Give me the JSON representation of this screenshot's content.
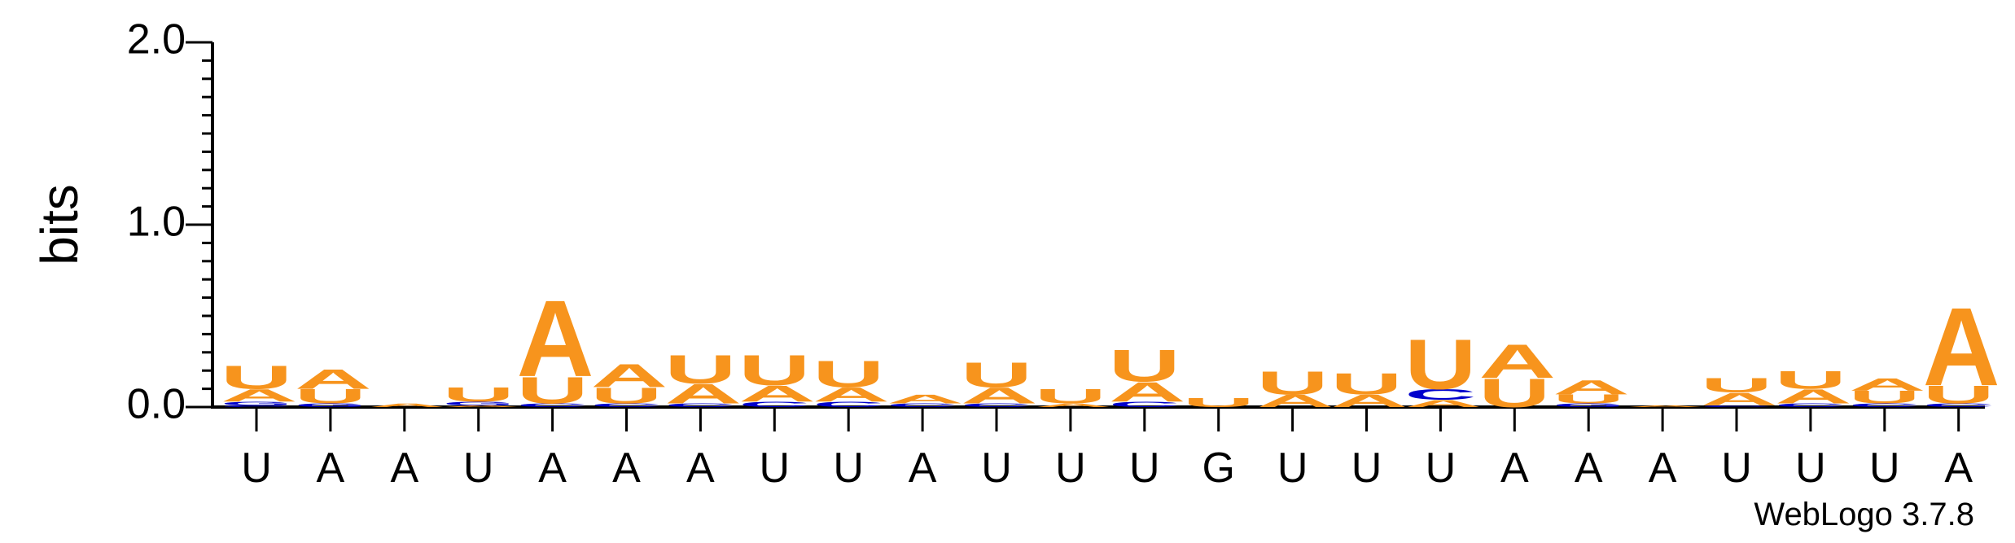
{
  "chart_data": {
    "type": "sequence-logo",
    "ylabel": "bits",
    "ylim": [
      0,
      2.0
    ],
    "y_ticks": [
      "0.0",
      "1.0",
      "2.0"
    ],
    "x_labels": [
      "U",
      "A",
      "A",
      "U",
      "A",
      "A",
      "A",
      "U",
      "U",
      "A",
      "U",
      "U",
      "U",
      "G",
      "U",
      "U",
      "U",
      "A",
      "A",
      "A",
      "U",
      "U",
      "U",
      "A"
    ],
    "footer": "WebLogo 3.7.8",
    "colors": {
      "A": "#f7941d",
      "U": "#f7941d",
      "C": "#0000cc",
      "G": "#0000cc"
    },
    "positions": [
      [
        [
          "C",
          0.01
        ],
        [
          "G",
          0.02
        ],
        [
          "A",
          0.07
        ],
        [
          "U",
          0.13
        ]
      ],
      [
        [
          "G",
          0.02
        ],
        [
          "U",
          0.08
        ],
        [
          "A",
          0.11
        ]
      ],
      [
        [
          "A",
          0.02
        ]
      ],
      [
        [
          "A",
          0.01
        ],
        [
          "G",
          0.02
        ],
        [
          "U",
          0.08
        ]
      ],
      [
        [
          "C",
          0.02
        ],
        [
          "U",
          0.15
        ],
        [
          "A",
          0.43
        ]
      ],
      [
        [
          "C",
          0.02
        ],
        [
          "U",
          0.09
        ],
        [
          "A",
          0.13
        ]
      ],
      [
        [
          "C",
          0.02
        ],
        [
          "A",
          0.11
        ],
        [
          "U",
          0.16
        ]
      ],
      [
        [
          "C",
          0.03
        ],
        [
          "A",
          0.09
        ],
        [
          "U",
          0.17
        ]
      ],
      [
        [
          "C",
          0.03
        ],
        [
          "A",
          0.08
        ],
        [
          "U",
          0.15
        ]
      ],
      [
        [
          "C",
          0.02
        ],
        [
          "A",
          0.05
        ]
      ],
      [
        [
          "C",
          0.02
        ],
        [
          "A",
          0.09
        ],
        [
          "U",
          0.14
        ]
      ],
      [
        [
          "A",
          0.02
        ],
        [
          "U",
          0.08
        ]
      ],
      [
        [
          "C",
          0.03
        ],
        [
          "A",
          0.11
        ],
        [
          "U",
          0.18
        ]
      ],
      [
        [
          "U",
          0.05
        ]
      ],
      [
        [
          "A",
          0.07
        ],
        [
          "U",
          0.13
        ]
      ],
      [
        [
          "A",
          0.07
        ],
        [
          "U",
          0.12
        ]
      ],
      [
        [
          "A",
          0.04
        ],
        [
          "C",
          0.06
        ],
        [
          "U",
          0.28
        ]
      ],
      [
        [
          "U",
          0.16
        ],
        [
          "A",
          0.19
        ]
      ],
      [
        [
          "G",
          0.02
        ],
        [
          "U",
          0.05
        ],
        [
          "A",
          0.08
        ]
      ],
      [
        [
          "A",
          0.01
        ]
      ],
      [
        [
          "C",
          0.01
        ],
        [
          "A",
          0.07
        ],
        [
          "U",
          0.08
        ]
      ],
      [
        [
          "C",
          0.02
        ],
        [
          "A",
          0.08
        ],
        [
          "U",
          0.1
        ]
      ],
      [
        [
          "C",
          0.02
        ],
        [
          "U",
          0.07
        ],
        [
          "A",
          0.07
        ]
      ],
      [
        [
          "C",
          0.02
        ],
        [
          "U",
          0.1
        ],
        [
          "A",
          0.44
        ]
      ]
    ]
  }
}
